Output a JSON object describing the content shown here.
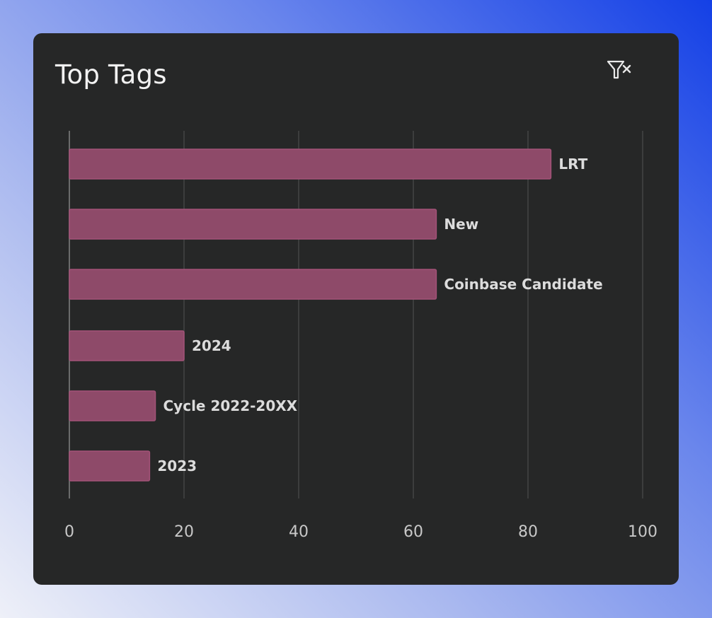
{
  "panel": {
    "title": "Top Tags"
  },
  "toolbar": {
    "clear_filter_icon": "filter-clear-icon"
  },
  "colors": {
    "bar_fill": "#8e4a69",
    "bar_stroke": "#a35378",
    "grid": "#4b4c4c",
    "card_bg": "#262727"
  },
  "chart_data": {
    "type": "bar",
    "orientation": "horizontal",
    "title": "Top Tags",
    "xlabel": "",
    "ylabel": "",
    "categories": [
      "LRT",
      "New",
      "Coinbase Candidate",
      "2024",
      "Cycle 2022-20XX",
      "2023"
    ],
    "values": [
      84,
      64,
      64,
      20,
      15,
      14
    ],
    "xlim": [
      0,
      100
    ],
    "xticks": [
      "0",
      "20",
      "40",
      "60",
      "80",
      "100"
    ],
    "grid": true,
    "legend": "none",
    "data_labels": "category names shown at bar ends"
  }
}
